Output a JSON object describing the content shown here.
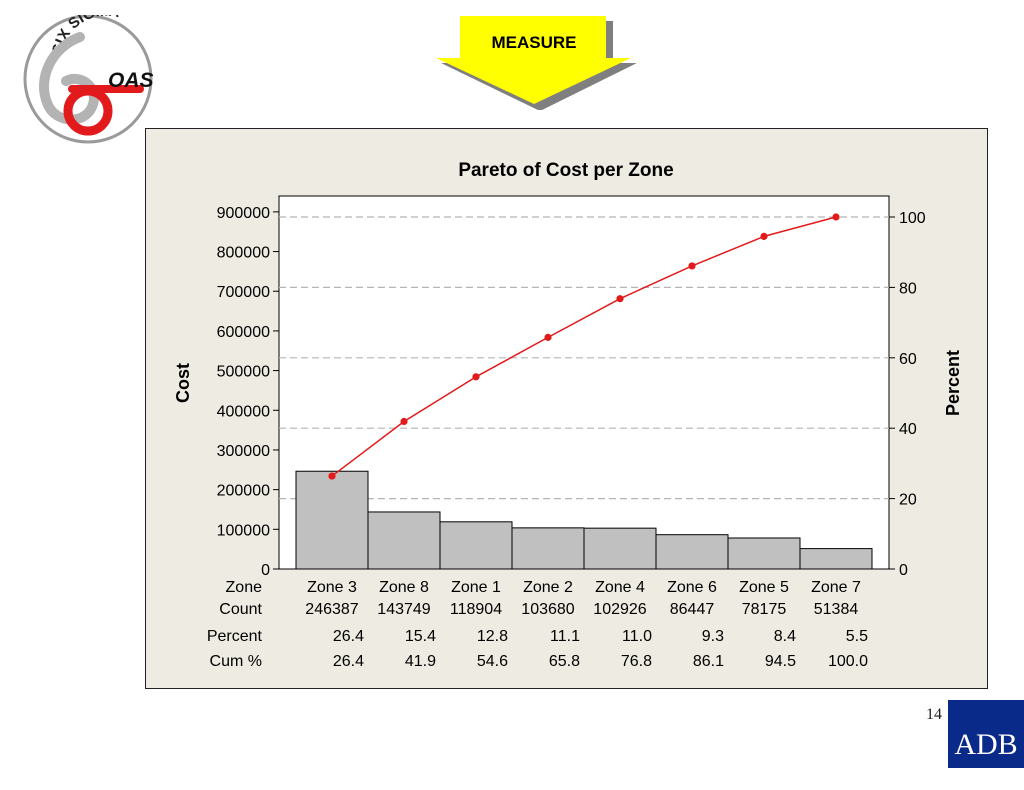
{
  "header": {
    "logo_top_text": "SIX SIGMA",
    "logo_side_text": "OAS",
    "banner_label": "MEASURE"
  },
  "footer": {
    "slide_number": "14",
    "brand_logo_text": "ADB"
  },
  "colors": {
    "panel_background": "#eeebe2",
    "bar_fill": "#c0c0c0",
    "cumulative_line": "#e31a1c",
    "banner_fill": "#ffff00",
    "brand_blue": "#0a2a8a",
    "logo_red": "#e31a1c"
  },
  "chart_data": {
    "type": "bar",
    "title": "Pareto of Cost per Zone",
    "ylabel": "Cost",
    "y2label": "Percent",
    "ylim": [
      0,
      940000
    ],
    "y2lim": [
      0,
      100
    ],
    "y_ticks": [
      0,
      100000,
      200000,
      300000,
      400000,
      500000,
      600000,
      700000,
      800000,
      900000
    ],
    "y2_ticks": [
      0,
      20,
      40,
      60,
      80,
      100
    ],
    "grid": "dashed at percent ticks",
    "categories": [
      "Zone 3",
      "Zone 8",
      "Zone 1",
      "Zone 2",
      "Zone 4",
      "Zone 6",
      "Zone 5",
      "Zone 7"
    ],
    "series": [
      {
        "type": "bar",
        "axis": "left",
        "values": [
          246387,
          143749,
          118904,
          103680,
          102926,
          86447,
          78175,
          51384
        ]
      },
      {
        "type": "line",
        "axis": "right",
        "values": [
          26.4,
          41.9,
          54.6,
          65.8,
          76.8,
          86.1,
          94.5,
          100.0
        ]
      }
    ],
    "table": {
      "row_labels": [
        "Zone",
        "Count",
        "Percent",
        "Cum %"
      ],
      "count": [
        "246387",
        "143749",
        "118904",
        "103680",
        "102926",
        "86447",
        "78175",
        "51384"
      ],
      "percent": [
        "26.4",
        "15.4",
        "12.8",
        "11.1",
        "11.0",
        "9.3",
        "8.4",
        "5.5"
      ],
      "cum_percent": [
        "26.4",
        "41.9",
        "54.6",
        "65.8",
        "76.8",
        "86.1",
        "94.5",
        "100.0"
      ]
    }
  }
}
